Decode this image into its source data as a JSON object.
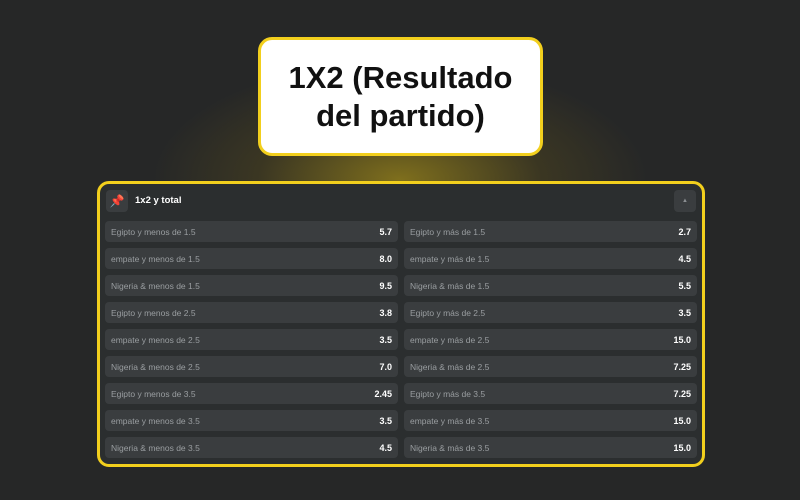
{
  "title": {
    "line1": "1X2 (Resultado",
    "line2": "del partido)"
  },
  "panel": {
    "title": "1x2 y total",
    "pin_icon": "pin-icon",
    "collapse_icon": "caret-up-icon",
    "rows": [
      {
        "left": {
          "label": "Egipto y menos de 1.5",
          "odds": "5.7"
        },
        "right": {
          "label": "Egipto y más de 1.5",
          "odds": "2.7"
        }
      },
      {
        "left": {
          "label": "empate y menos de 1.5",
          "odds": "8.0"
        },
        "right": {
          "label": "empate y más de 1.5",
          "odds": "4.5"
        }
      },
      {
        "left": {
          "label": "Nigeria & menos de 1.5",
          "odds": "9.5"
        },
        "right": {
          "label": "Nigeria & más de 1.5",
          "odds": "5.5"
        }
      },
      {
        "left": {
          "label": "Egipto y menos de 2.5",
          "odds": "3.8"
        },
        "right": {
          "label": "Egipto y más de 2.5",
          "odds": "3.5"
        }
      },
      {
        "left": {
          "label": "empate y menos de 2.5",
          "odds": "3.5"
        },
        "right": {
          "label": "empate y más de 2.5",
          "odds": "15.0"
        }
      },
      {
        "left": {
          "label": "Nigeria & menos de 2.5",
          "odds": "7.0"
        },
        "right": {
          "label": "Nigeria & más de 2.5",
          "odds": "7.25"
        }
      },
      {
        "left": {
          "label": "Egipto y menos de 3.5",
          "odds": "2.45"
        },
        "right": {
          "label": "Egipto y más de 3.5",
          "odds": "7.25"
        }
      },
      {
        "left": {
          "label": "empate y menos de 3.5",
          "odds": "3.5"
        },
        "right": {
          "label": "empate y más de 3.5",
          "odds": "15.0"
        }
      },
      {
        "left": {
          "label": "Nigeria & menos de 3.5",
          "odds": "4.5"
        },
        "right": {
          "label": "Nigeria & más de 3.5",
          "odds": "15.0"
        }
      }
    ]
  },
  "colors": {
    "accent": "#f2cf1d",
    "background": "#262727",
    "panel": "#2b2e2f",
    "cell": "#3a3d3f"
  }
}
